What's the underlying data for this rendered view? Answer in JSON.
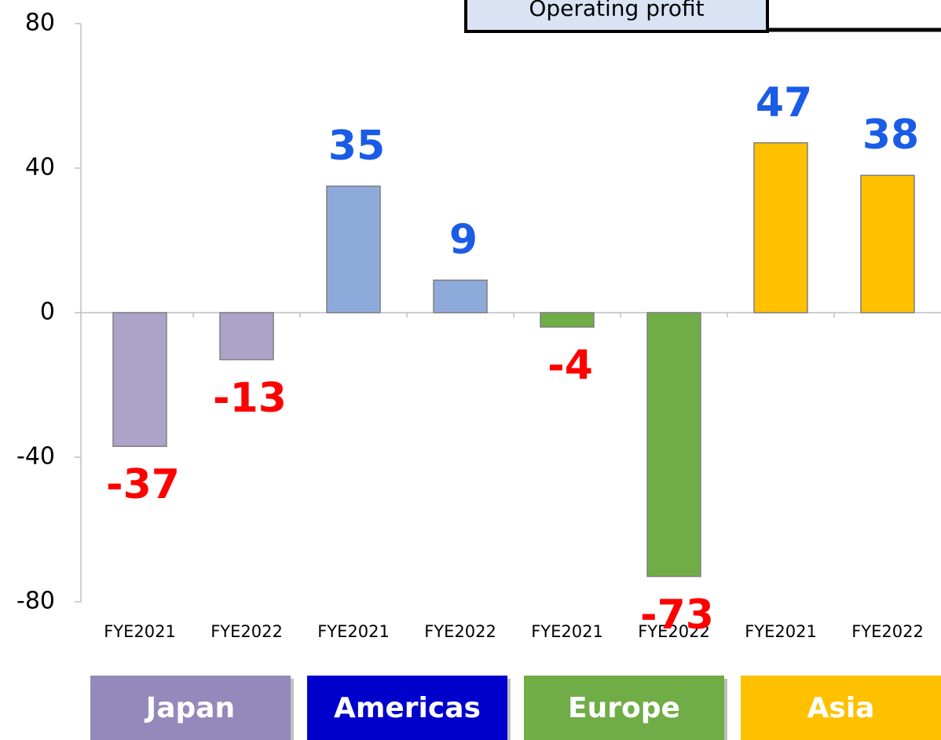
{
  "chart_data": {
    "type": "bar",
    "annotation": "Operating profit",
    "ylim": [
      -80,
      80
    ],
    "yticks": [
      -80,
      -40,
      0,
      40,
      80
    ],
    "positive_label_color": "#1a5ce6",
    "negative_label_color": "#ff0000",
    "groups": [
      {
        "name": "Japan",
        "color": "#9589bb",
        "bar_color": "#aba3c8",
        "categories": [
          "FYE2021",
          "FYE2022"
        ],
        "values": [
          -37,
          -13
        ]
      },
      {
        "name": "Americas",
        "color": "#0000cc",
        "bar_color": "#8eaadb",
        "categories": [
          "FYE2021",
          "FYE2022"
        ],
        "values": [
          35,
          9
        ]
      },
      {
        "name": "Europe",
        "color": "#70ad47",
        "bar_color": "#70ad47",
        "categories": [
          "FYE2021",
          "FYE2022"
        ],
        "values": [
          -4,
          -73
        ]
      },
      {
        "name": "Asia",
        "color": "#ffc000",
        "bar_color": "#ffc000",
        "categories": [
          "FYE2021",
          "FYE2022"
        ],
        "values": [
          47,
          38
        ]
      }
    ]
  }
}
